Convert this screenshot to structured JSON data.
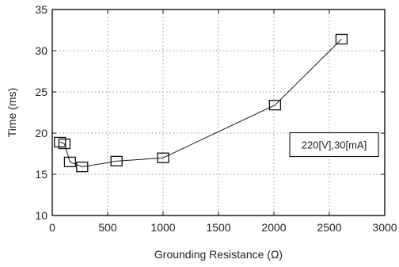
{
  "chart_data": {
    "type": "line",
    "title": "",
    "xlabel": "Grounding Resistance (Ω)",
    "ylabel": "Time (ms)",
    "xlim": [
      0,
      3000
    ],
    "ylim": [
      10,
      35
    ],
    "xticks": [
      "0",
      "500",
      "1000",
      "1500",
      "2000",
      "2500",
      "3000"
    ],
    "yticks": [
      "10",
      "15",
      "20",
      "25",
      "30",
      "35"
    ],
    "grid": true,
    "marker": "square",
    "annotation": "220[V],30[mA]",
    "series": [
      {
        "x": [
          70,
          110,
          160,
          270,
          580,
          1000,
          2010,
          2610
        ],
        "y": [
          18.9,
          18.7,
          16.5,
          15.9,
          16.6,
          17.0,
          23.4,
          31.4
        ]
      }
    ]
  },
  "colors": {
    "axis": "#111111",
    "grid": "#9a9a9a",
    "line": "#1a1a1a"
  }
}
